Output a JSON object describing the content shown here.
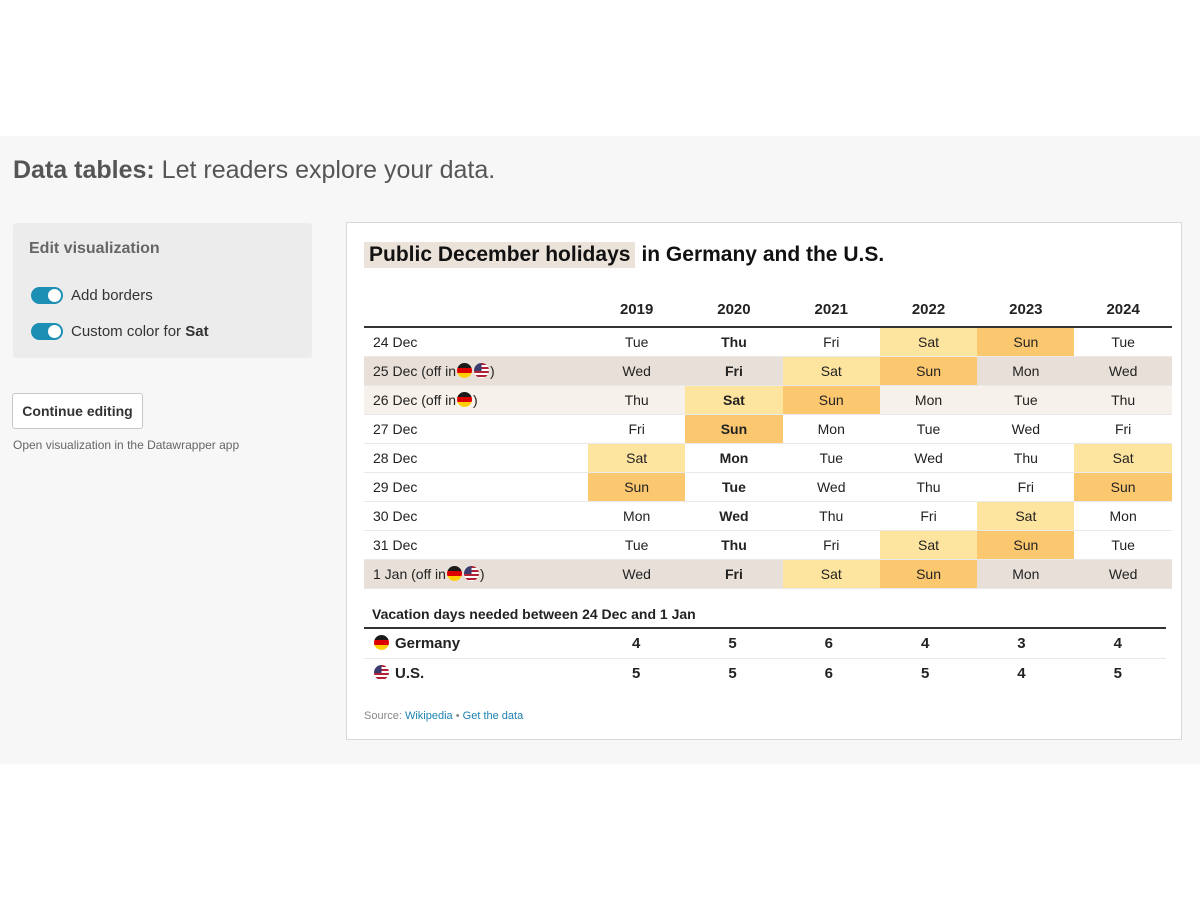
{
  "headline": {
    "bold": "Data tables:",
    "rest": "Let readers explore your data."
  },
  "panel": {
    "title": "Edit visualization",
    "toggle1_label": "Add borders",
    "toggle1_on": true,
    "toggle2_label": "Custom color for",
    "toggle2_bold": "Sat",
    "toggle2_on": true
  },
  "continue_button": "Continue editing",
  "continue_hint": "Open visualization in the Datawrapper app",
  "chart": {
    "title_highlight": "Public December holidays",
    "title_rest": "in Germany and the U.S.",
    "colors": {
      "sat": "#fde49f",
      "sun": "#fcc86f",
      "holiday_row": "#e8e0d8",
      "de_holiday_row": "#f6f1ea",
      "toggle": "#1d8fb4"
    },
    "years": [
      "2019",
      "2020",
      "2021",
      "2022",
      "2023",
      "2024"
    ],
    "rows": [
      {
        "label": "24 Dec",
        "off_de": false,
        "off_us": false,
        "days": [
          "Tue",
          "Thu",
          "Fri",
          "Sat",
          "Sun",
          "Tue"
        ]
      },
      {
        "label": "25 Dec (off in",
        "suffix": ")",
        "off_de": true,
        "off_us": true,
        "days": [
          "Wed",
          "Fri",
          "Sat",
          "Sun",
          "Mon",
          "Wed"
        ]
      },
      {
        "label": "26 Dec (off in",
        "suffix": ")",
        "off_de": true,
        "off_us": false,
        "days": [
          "Thu",
          "Sat",
          "Sun",
          "Mon",
          "Tue",
          "Thu"
        ]
      },
      {
        "label": "27 Dec",
        "off_de": false,
        "off_us": false,
        "days": [
          "Fri",
          "Sun",
          "Mon",
          "Tue",
          "Wed",
          "Fri"
        ]
      },
      {
        "label": "28 Dec",
        "off_de": false,
        "off_us": false,
        "days": [
          "Sat",
          "Mon",
          "Tue",
          "Wed",
          "Thu",
          "Sat"
        ]
      },
      {
        "label": "29 Dec",
        "off_de": false,
        "off_us": false,
        "days": [
          "Sun",
          "Tue",
          "Wed",
          "Thu",
          "Fri",
          "Sun"
        ]
      },
      {
        "label": "30 Dec",
        "off_de": false,
        "off_us": false,
        "days": [
          "Mon",
          "Wed",
          "Thu",
          "Fri",
          "Sat",
          "Mon"
        ]
      },
      {
        "label": "31 Dec",
        "off_de": false,
        "off_us": false,
        "days": [
          "Tue",
          "Thu",
          "Fri",
          "Sat",
          "Sun",
          "Tue"
        ]
      },
      {
        "label": "1 Jan (off in",
        "suffix": ")",
        "off_de": true,
        "off_us": true,
        "days": [
          "Wed",
          "Fri",
          "Sat",
          "Sun",
          "Mon",
          "Wed"
        ]
      }
    ],
    "bold_year": "2020",
    "vacation_title": "Vacation days needed between 24 Dec and 1 Jan",
    "vacation": [
      {
        "country": "Germany",
        "flag": "de-flag-icon",
        "values": [
          "4",
          "5",
          "6",
          "4",
          "3",
          "4"
        ]
      },
      {
        "country": "U.S.",
        "flag": "us-flag-icon",
        "values": [
          "5",
          "5",
          "6",
          "5",
          "4",
          "5"
        ]
      }
    ],
    "source_label": "Source:",
    "source_link": "Wikipedia",
    "separator": "•",
    "get_data_link": "Get the data"
  }
}
